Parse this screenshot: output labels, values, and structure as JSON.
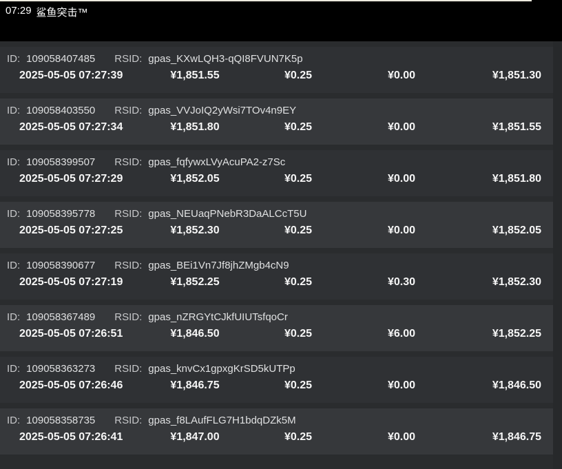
{
  "header": {
    "time": "07:29",
    "game_title": "鲨鱼突击™"
  },
  "labels": {
    "id": "ID:",
    "rsid": "RSID:"
  },
  "rows": [
    {
      "id": "109058407485",
      "rsid": "gpas_KXwLQH3-qQI8FVUN7K5p",
      "datetime": "2025-05-05 07:27:39",
      "pre_balance": "¥1,851.55",
      "bet": "¥0.25",
      "win": "¥0.00",
      "balance": "¥1,851.30"
    },
    {
      "id": "109058403550",
      "rsid": "gpas_VVJoIQ2yWsi7TOv4n9EY",
      "datetime": "2025-05-05 07:27:34",
      "pre_balance": "¥1,851.80",
      "bet": "¥0.25",
      "win": "¥0.00",
      "balance": "¥1,851.55"
    },
    {
      "id": "109058399507",
      "rsid": "gpas_fqfywxLVyAcuPA2-z7Sc",
      "datetime": "2025-05-05 07:27:29",
      "pre_balance": "¥1,852.05",
      "bet": "¥0.25",
      "win": "¥0.00",
      "balance": "¥1,851.80"
    },
    {
      "id": "109058395778",
      "rsid": "gpas_NEUaqPNebR3DaALCcT5U",
      "datetime": "2025-05-05 07:27:25",
      "pre_balance": "¥1,852.30",
      "bet": "¥0.25",
      "win": "¥0.00",
      "balance": "¥1,852.05"
    },
    {
      "id": "109058390677",
      "rsid": "gpas_BEi1Vn7Jf8jhZMgb4cN9",
      "datetime": "2025-05-05 07:27:19",
      "pre_balance": "¥1,852.25",
      "bet": "¥0.25",
      "win": "¥0.30",
      "balance": "¥1,852.30"
    },
    {
      "id": "109058367489",
      "rsid": "gpas_nZRGYtCJkfUIUTsfqoCr",
      "datetime": "2025-05-05 07:26:51",
      "pre_balance": "¥1,846.50",
      "bet": "¥0.25",
      "win": "¥6.00",
      "balance": "¥1,852.25"
    },
    {
      "id": "109058363273",
      "rsid": "gpas_knvCx1gpxgKrSD5kUTPp",
      "datetime": "2025-05-05 07:26:46",
      "pre_balance": "¥1,846.75",
      "bet": "¥0.25",
      "win": "¥0.00",
      "balance": "¥1,846.50"
    },
    {
      "id": "109058358735",
      "rsid": "gpas_f8LAufFLG7H1bdqDZk5M",
      "datetime": "2025-05-05 07:26:41",
      "pre_balance": "¥1,847.00",
      "bet": "¥0.25",
      "win": "¥0.00",
      "balance": "¥1,846.75"
    }
  ]
}
